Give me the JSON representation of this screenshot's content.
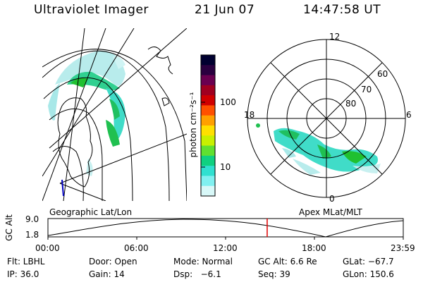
{
  "header": {
    "instrument": "Ultraviolet Imager",
    "date": "21 Jun 07",
    "time": "14:47:58 UT"
  },
  "colorbar": {
    "label": "photon cm⁻²s⁻¹",
    "ticks": [
      "100",
      "10"
    ],
    "colors": [
      "#000030",
      "#2a0040",
      "#6a0050",
      "#a00020",
      "#d00000",
      "#ff5000",
      "#ffa000",
      "#ffe000",
      "#c8f000",
      "#60e030",
      "#10d080",
      "#30e0d0",
      "#80f0f0",
      "#d8f8f8"
    ]
  },
  "geo_map": {
    "label": "Geographic Lat/Lon"
  },
  "polar_plot": {
    "label": "Apex MLat/MLT",
    "mlt_labels": [
      "12",
      "18",
      "6",
      "0"
    ],
    "lat_labels": [
      "60",
      "70",
      "80"
    ]
  },
  "timeline": {
    "ylabel": "GC Alt",
    "ymax_label": "9.0",
    "ymin_label": "1.8",
    "time_ticks": [
      "00:00",
      "06:00",
      "12:00",
      "18:00",
      "23:59"
    ],
    "current_fraction": 0.617
  },
  "status": {
    "filter": "Flt: LBHL",
    "door": "Door: Open",
    "mode": "Mode: Normal",
    "gc_alt": "GC Alt: 6.6 Re",
    "glat": "GLat: −67.7",
    "ip": "IP: 36.0",
    "gain": "Gain: 14",
    "dsp": "Dsp:   −6.1",
    "seq": "Seq: 39",
    "glon": "GLon: 150.6"
  }
}
